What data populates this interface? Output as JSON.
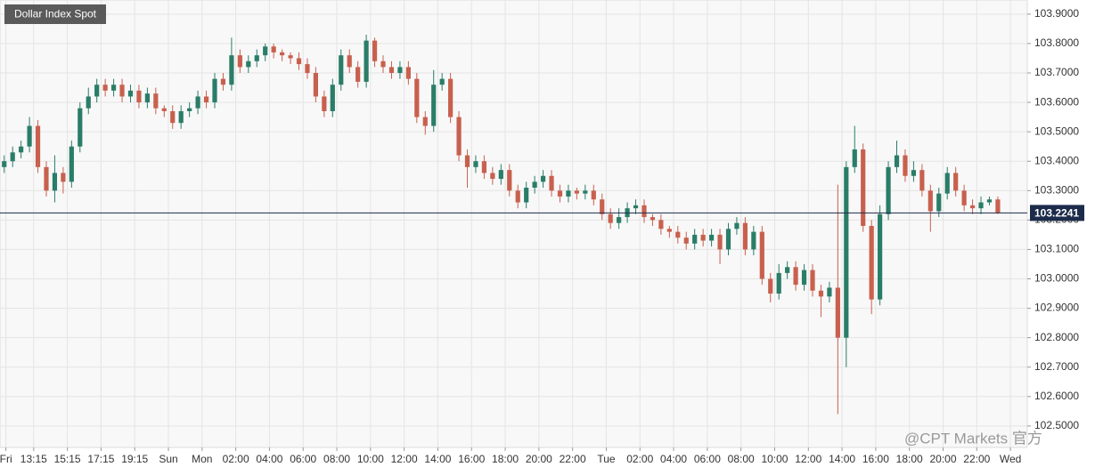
{
  "chart_data": {
    "type": "candlestick",
    "title": "Dollar Index Spot",
    "watermark": "@CPT Markets 官方",
    "up_color": "#2a7d68",
    "down_color": "#c8604e",
    "grid": true,
    "ylim": [
      102.427,
      103.948
    ],
    "yticks": [
      {
        "value": 102.5,
        "label": "102.5000"
      },
      {
        "value": 102.6,
        "label": "102.6000"
      },
      {
        "value": 102.7,
        "label": "102.7000"
      },
      {
        "value": 102.8,
        "label": "102.8000"
      },
      {
        "value": 102.9,
        "label": "102.9000"
      },
      {
        "value": 103.0,
        "label": "103.0000"
      },
      {
        "value": 103.1,
        "label": "103.1000"
      },
      {
        "value": 103.2,
        "label": "103.2000"
      },
      {
        "value": 103.3,
        "label": "103.3000"
      },
      {
        "value": 103.4,
        "label": "103.4000"
      },
      {
        "value": 103.5,
        "label": "103.5000"
      },
      {
        "value": 103.6,
        "label": "103.6000"
      },
      {
        "value": 103.7,
        "label": "103.7000"
      },
      {
        "value": 103.8,
        "label": "103.8000"
      },
      {
        "value": 103.9,
        "label": "103.9000"
      }
    ],
    "xlim": [
      0,
      122
    ],
    "xticks": [
      {
        "value": 0.7,
        "label": "Fri"
      },
      {
        "value": 4,
        "label": "13:15"
      },
      {
        "value": 8,
        "label": "15:15"
      },
      {
        "value": 12,
        "label": "17:15"
      },
      {
        "value": 16,
        "label": "19:15"
      },
      {
        "value": 20,
        "label": "Sun"
      },
      {
        "value": 24,
        "label": "Mon"
      },
      {
        "value": 28,
        "label": "02:00"
      },
      {
        "value": 32,
        "label": "04:00"
      },
      {
        "value": 36,
        "label": "06:00"
      },
      {
        "value": 40,
        "label": "08:00"
      },
      {
        "value": 44,
        "label": "10:00"
      },
      {
        "value": 48,
        "label": "12:00"
      },
      {
        "value": 52,
        "label": "14:00"
      },
      {
        "value": 56,
        "label": "16:00"
      },
      {
        "value": 60,
        "label": "18:00"
      },
      {
        "value": 64,
        "label": "20:00"
      },
      {
        "value": 68,
        "label": "22:00"
      },
      {
        "value": 72,
        "label": "Tue"
      },
      {
        "value": 76,
        "label": "02:00"
      },
      {
        "value": 80,
        "label": "04:00"
      },
      {
        "value": 84,
        "label": "06:00"
      },
      {
        "value": 88,
        "label": "08:00"
      },
      {
        "value": 92,
        "label": "10:00"
      },
      {
        "value": 96,
        "label": "12:00"
      },
      {
        "value": 100,
        "label": "14:00"
      },
      {
        "value": 104,
        "label": "16:00"
      },
      {
        "value": 108,
        "label": "18:00"
      },
      {
        "value": 112,
        "label": "20:00"
      },
      {
        "value": 116,
        "label": "22:00"
      },
      {
        "value": 120,
        "label": "Wed"
      }
    ],
    "last_price": 103.2241,
    "open": [
      103.38,
      103.4,
      103.43,
      103.45,
      103.52,
      103.38,
      103.3,
      103.36,
      103.33,
      103.45,
      103.58,
      103.62,
      103.66,
      103.64,
      103.66,
      103.62,
      103.64,
      103.6,
      103.63,
      103.58,
      103.57,
      103.53,
      103.57,
      103.58,
      103.62,
      103.6,
      103.68,
      103.66,
      103.76,
      103.72,
      103.74,
      103.76,
      103.79,
      103.77,
      103.76,
      103.75,
      103.73,
      103.7,
      103.62,
      103.57,
      103.66,
      103.76,
      103.72,
      103.67,
      103.81,
      103.74,
      103.72,
      103.7,
      103.72,
      103.68,
      103.55,
      103.52,
      103.66,
      103.68,
      103.55,
      103.42,
      103.38,
      103.4,
      103.36,
      103.34,
      103.37,
      103.3,
      103.26,
      103.31,
      103.33,
      103.35,
      103.3,
      103.28,
      103.3,
      103.29,
      103.3,
      103.27,
      103.22,
      103.19,
      103.21,
      103.24,
      103.25,
      103.21,
      103.2,
      103.17,
      103.16,
      103.14,
      103.12,
      103.15,
      103.13,
      103.15,
      103.1,
      103.17,
      103.19,
      103.1,
      103.16,
      103.0,
      102.95,
      103.02,
      103.04,
      102.98,
      103.03,
      102.96,
      102.94,
      102.97,
      102.8,
      103.38,
      103.44,
      103.18,
      102.93,
      103.22,
      103.38,
      103.42,
      103.35,
      103.37,
      103.3,
      103.23,
      103.29,
      103.36,
      103.3,
      103.25,
      103.24,
      103.26,
      103.27
    ],
    "high": [
      103.42,
      103.45,
      103.47,
      103.55,
      103.54,
      103.4,
      103.42,
      103.38,
      103.47,
      103.6,
      103.65,
      103.68,
      103.68,
      103.68,
      103.68,
      103.66,
      103.66,
      103.65,
      103.65,
      103.59,
      103.59,
      103.59,
      103.6,
      103.64,
      103.64,
      103.7,
      103.7,
      103.82,
      103.78,
      103.76,
      103.78,
      103.8,
      103.8,
      103.78,
      103.77,
      103.77,
      103.75,
      103.72,
      103.64,
      103.68,
      103.78,
      103.78,
      103.74,
      103.83,
      103.82,
      103.76,
      103.74,
      103.74,
      103.74,
      103.7,
      103.57,
      103.71,
      103.7,
      103.7,
      103.57,
      103.44,
      103.42,
      103.42,
      103.38,
      103.39,
      103.39,
      103.32,
      103.33,
      103.35,
      103.37,
      103.37,
      103.32,
      103.32,
      103.31,
      103.32,
      103.32,
      103.29,
      103.24,
      103.24,
      103.26,
      103.27,
      103.27,
      103.22,
      103.22,
      103.18,
      103.18,
      103.16,
      103.17,
      103.17,
      103.17,
      103.17,
      103.19,
      103.21,
      103.21,
      103.18,
      103.18,
      103.02,
      103.05,
      103.06,
      103.06,
      103.05,
      103.05,
      102.98,
      102.99,
      103.32,
      103.4,
      103.52,
      103.46,
      103.2,
      103.25,
      103.4,
      103.47,
      103.44,
      103.4,
      103.39,
      103.32,
      103.31,
      103.38,
      103.38,
      103.32,
      103.27,
      103.28,
      103.28,
      103.28
    ],
    "low": [
      103.36,
      103.38,
      103.41,
      103.43,
      103.36,
      103.28,
      103.26,
      103.29,
      103.31,
      103.43,
      103.56,
      103.6,
      103.62,
      103.62,
      103.6,
      103.6,
      103.58,
      103.58,
      103.56,
      103.55,
      103.51,
      103.51,
      103.55,
      103.56,
      103.58,
      103.58,
      103.64,
      103.64,
      103.7,
      103.7,
      103.72,
      103.74,
      103.75,
      103.74,
      103.73,
      103.71,
      103.68,
      103.6,
      103.55,
      103.55,
      103.64,
      103.7,
      103.65,
      103.65,
      103.72,
      103.7,
      103.68,
      103.68,
      103.66,
      103.53,
      103.49,
      103.5,
      103.64,
      103.53,
      103.4,
      103.31,
      103.36,
      103.34,
      103.32,
      103.32,
      103.28,
      103.24,
      103.24,
      103.29,
      103.31,
      103.28,
      103.26,
      103.26,
      103.27,
      103.27,
      103.25,
      103.2,
      103.17,
      103.17,
      103.19,
      103.22,
      103.19,
      103.18,
      103.15,
      103.14,
      103.12,
      103.1,
      103.1,
      103.11,
      103.11,
      103.05,
      103.08,
      103.15,
      103.08,
      103.08,
      102.98,
      102.92,
      102.93,
      103.0,
      102.96,
      102.96,
      102.94,
      102.87,
      102.92,
      102.54,
      102.7,
      103.36,
      103.16,
      102.88,
      102.91,
      103.2,
      103.36,
      103.33,
      103.33,
      103.28,
      103.16,
      103.21,
      103.27,
      103.28,
      103.23,
      103.22,
      103.22,
      103.25,
      103.22
    ],
    "close": [
      103.4,
      103.43,
      103.45,
      103.52,
      103.38,
      103.3,
      103.36,
      103.33,
      103.45,
      103.58,
      103.62,
      103.66,
      103.64,
      103.66,
      103.62,
      103.64,
      103.6,
      103.63,
      103.58,
      103.57,
      103.53,
      103.57,
      103.58,
      103.62,
      103.6,
      103.68,
      103.66,
      103.76,
      103.72,
      103.74,
      103.76,
      103.79,
      103.77,
      103.76,
      103.75,
      103.73,
      103.7,
      103.62,
      103.57,
      103.66,
      103.76,
      103.72,
      103.67,
      103.81,
      103.74,
      103.72,
      103.7,
      103.72,
      103.68,
      103.55,
      103.52,
      103.66,
      103.68,
      103.55,
      103.42,
      103.38,
      103.4,
      103.36,
      103.34,
      103.37,
      103.3,
      103.26,
      103.31,
      103.33,
      103.35,
      103.3,
      103.28,
      103.3,
      103.29,
      103.3,
      103.27,
      103.22,
      103.19,
      103.21,
      103.24,
      103.25,
      103.21,
      103.2,
      103.17,
      103.16,
      103.14,
      103.12,
      103.15,
      103.13,
      103.15,
      103.1,
      103.17,
      103.19,
      103.1,
      103.16,
      103.0,
      102.95,
      103.02,
      103.04,
      102.98,
      103.03,
      102.96,
      102.94,
      102.97,
      102.8,
      103.38,
      103.44,
      103.18,
      102.93,
      103.22,
      103.38,
      103.42,
      103.35,
      103.37,
      103.3,
      103.23,
      103.29,
      103.36,
      103.3,
      103.25,
      103.24,
      103.26,
      103.27,
      103.2241
    ]
  }
}
